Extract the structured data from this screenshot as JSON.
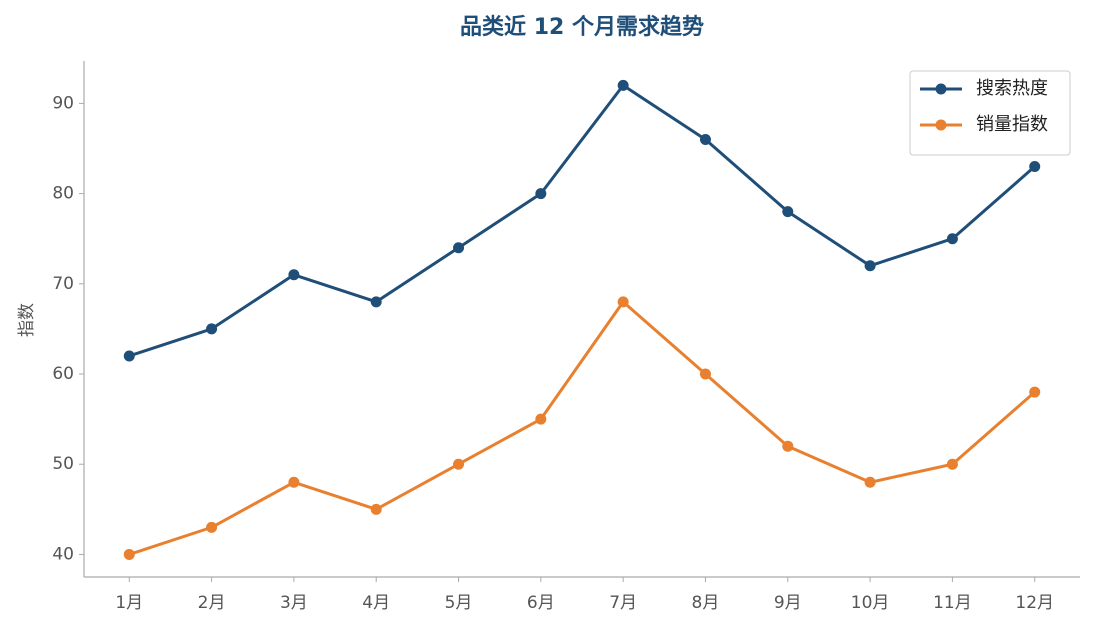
{
  "chart_data": {
    "type": "line",
    "title": "品类近 12 个月需求趋势",
    "y_label": "指数",
    "categories": [
      "1月",
      "2月",
      "3月",
      "4月",
      "5月",
      "6月",
      "7月",
      "8月",
      "9月",
      "10月",
      "11月",
      "12月"
    ],
    "series": [
      {
        "name": "搜索热度",
        "color": "#1f4e79",
        "values": [
          62,
          65,
          71,
          68,
          74,
          80,
          92,
          86,
          78,
          72,
          75,
          83
        ]
      },
      {
        "name": "销量指数",
        "color": "#e8802f",
        "values": [
          40,
          43,
          48,
          45,
          50,
          55,
          68,
          60,
          52,
          48,
          50,
          58
        ]
      }
    ],
    "ylim": [
      37.5,
      94.7
    ],
    "yticks": [
      40,
      50,
      60,
      70,
      80,
      90
    ],
    "grid": false,
    "legend": "upper right"
  }
}
